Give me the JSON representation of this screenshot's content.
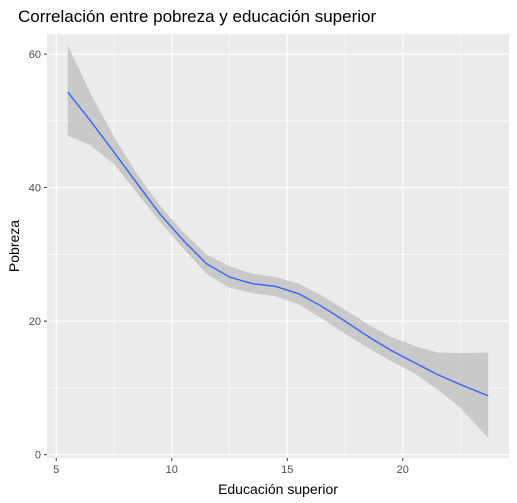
{
  "chart_data": {
    "type": "line",
    "title": "Correlación entre pobreza y educación superior",
    "xlabel": "Educación superior",
    "ylabel": "Pobreza",
    "xlim": [
      4.6,
      24.6
    ],
    "ylim": [
      -0.5,
      63
    ],
    "x_ticks": [
      5,
      10,
      15,
      20
    ],
    "y_ticks": [
      0,
      20,
      40,
      60
    ],
    "grid": true,
    "legend": "none",
    "colors": {
      "panel_background": "#EBEBEB",
      "grid_major": "#FFFFFF",
      "line": "#3366FF",
      "ribbon": "#BEBEBE"
    },
    "series": [
      {
        "x": [
          5.5,
          6.5,
          7.5,
          8.5,
          9.5,
          10.5,
          11.5,
          12.5,
          13.5,
          14.5,
          15.5,
          16.5,
          17.5,
          18.5,
          19.5,
          20.5,
          21.5,
          22.5,
          23.7
        ],
        "y": [
          54.3,
          49.9,
          45.3,
          40.6,
          36.0,
          32.1,
          28.6,
          26.6,
          25.6,
          25.2,
          24.1,
          22.2,
          20.0,
          17.7,
          15.6,
          13.8,
          12.0,
          10.5,
          8.8
        ],
        "lower": [
          47.8,
          46.3,
          43.5,
          39.2,
          34.8,
          30.9,
          27.1,
          25.0,
          24.2,
          23.7,
          22.5,
          20.4,
          18.1,
          16.0,
          14.0,
          12.2,
          9.8,
          7.0,
          2.5
        ],
        "upper": [
          61.3,
          54.0,
          47.6,
          42.0,
          37.2,
          33.3,
          30.0,
          28.2,
          27.1,
          26.6,
          25.6,
          23.8,
          21.7,
          19.5,
          17.6,
          16.3,
          15.3,
          15.2,
          15.3
        ]
      }
    ]
  }
}
